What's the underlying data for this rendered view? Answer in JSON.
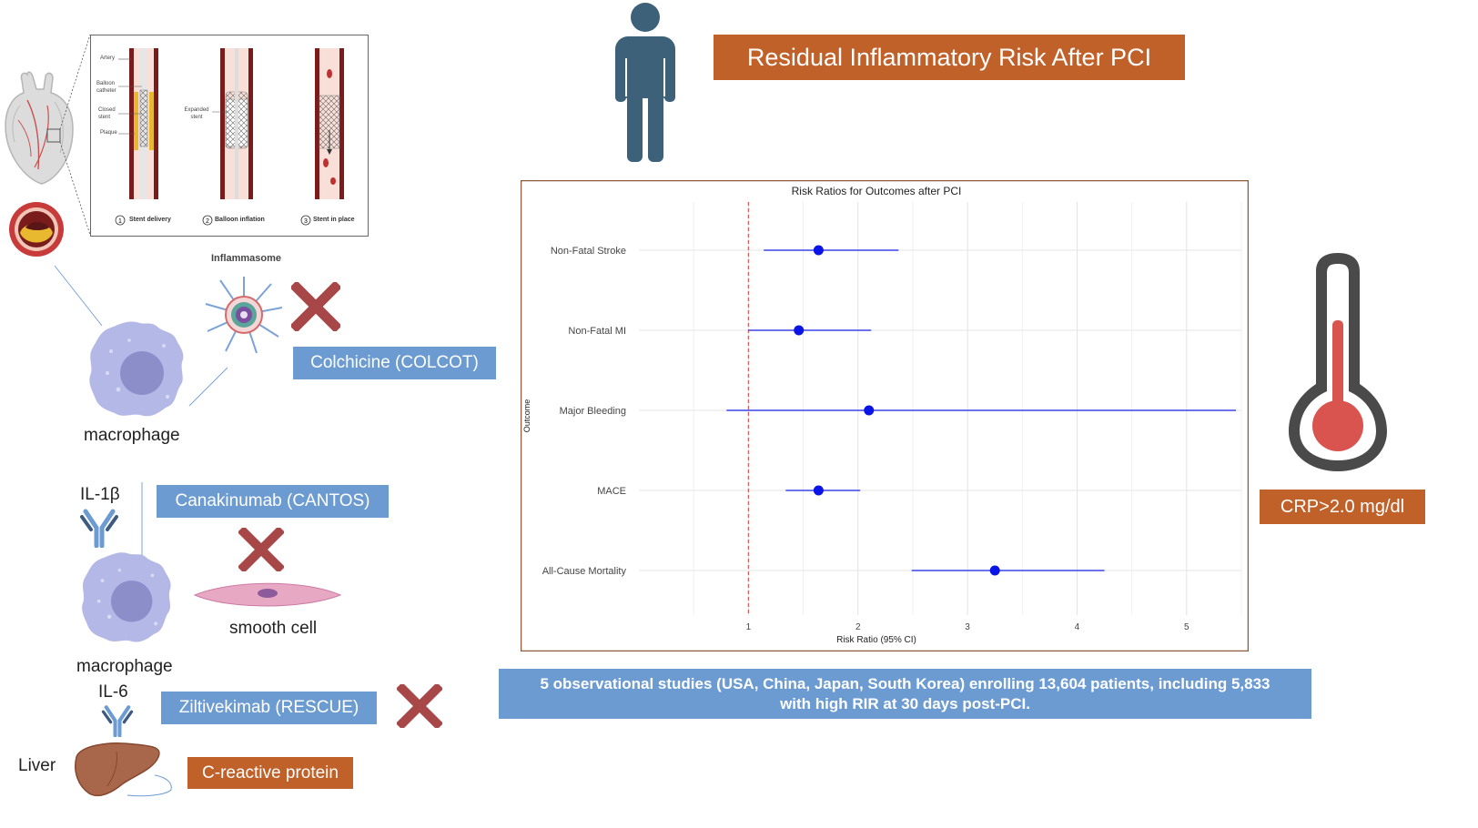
{
  "title": "Residual Inflammatory Risk After PCI",
  "stent_panel": {
    "labels": {
      "artery": "Artery",
      "balloon_catheter": "Balloon catheter",
      "closed_stent": "Closed stent",
      "plaque": "Plaque",
      "expanded_stent": "Expanded stent"
    },
    "steps": [
      "Stent delivery",
      "Balloon inflation",
      "Stent in place"
    ]
  },
  "inflammasome_label": "Inflammasome",
  "macrophage_top_label": "macrophage",
  "macrophage_bottom_label": "macrophage",
  "il1b_label": "IL-1β",
  "il6_label": "IL-6",
  "smooth_cell_label": "smooth cell",
  "liver_label": "Liver",
  "drugs": {
    "colchicine": "Colchicine (COLCOT)",
    "canakinumab": "Canakinumab (CANTOS)",
    "ziltivekimab": "Ziltivekimab (RESCUE)",
    "crp": "C-reactive protein"
  },
  "crp_threshold": "CRP>2.0 mg/dl",
  "studies_text_line1": "5 observational studies (USA, China, Japan, South Korea) enrolling 13,604 patients, including 5,833",
  "studies_text_line2": "with high RIR at 30 days post-PCI.",
  "colors": {
    "blue_box": "#6c9bd2",
    "orange_box": "#c0612a",
    "person": "#3d6178",
    "cross": "#a84747",
    "point": "#0a14e6",
    "ref_line": "#e05555"
  },
  "chart_data": {
    "type": "forest",
    "title": "Risk Ratios for Outcomes after PCI",
    "xlabel": "Risk Ratio (95% CI)",
    "ylabel": "Outcome",
    "xlim": [
      0.0,
      5.5
    ],
    "xticks": [
      1,
      2,
      3,
      4,
      5
    ],
    "reference_line": 1,
    "grid": true,
    "outcomes": [
      {
        "name": "Non-Fatal Stroke",
        "rr": 1.64,
        "lo": 1.14,
        "hi": 2.37
      },
      {
        "name": "Non-Fatal MI",
        "rr": 1.46,
        "lo": 1.0,
        "hi": 2.12
      },
      {
        "name": "Major Bleeding",
        "rr": 2.1,
        "lo": 0.8,
        "hi": 5.45
      },
      {
        "name": "MACE",
        "rr": 1.64,
        "lo": 1.34,
        "hi": 2.02
      },
      {
        "name": "All-Cause Mortality",
        "rr": 3.25,
        "lo": 2.49,
        "hi": 4.25
      }
    ]
  }
}
